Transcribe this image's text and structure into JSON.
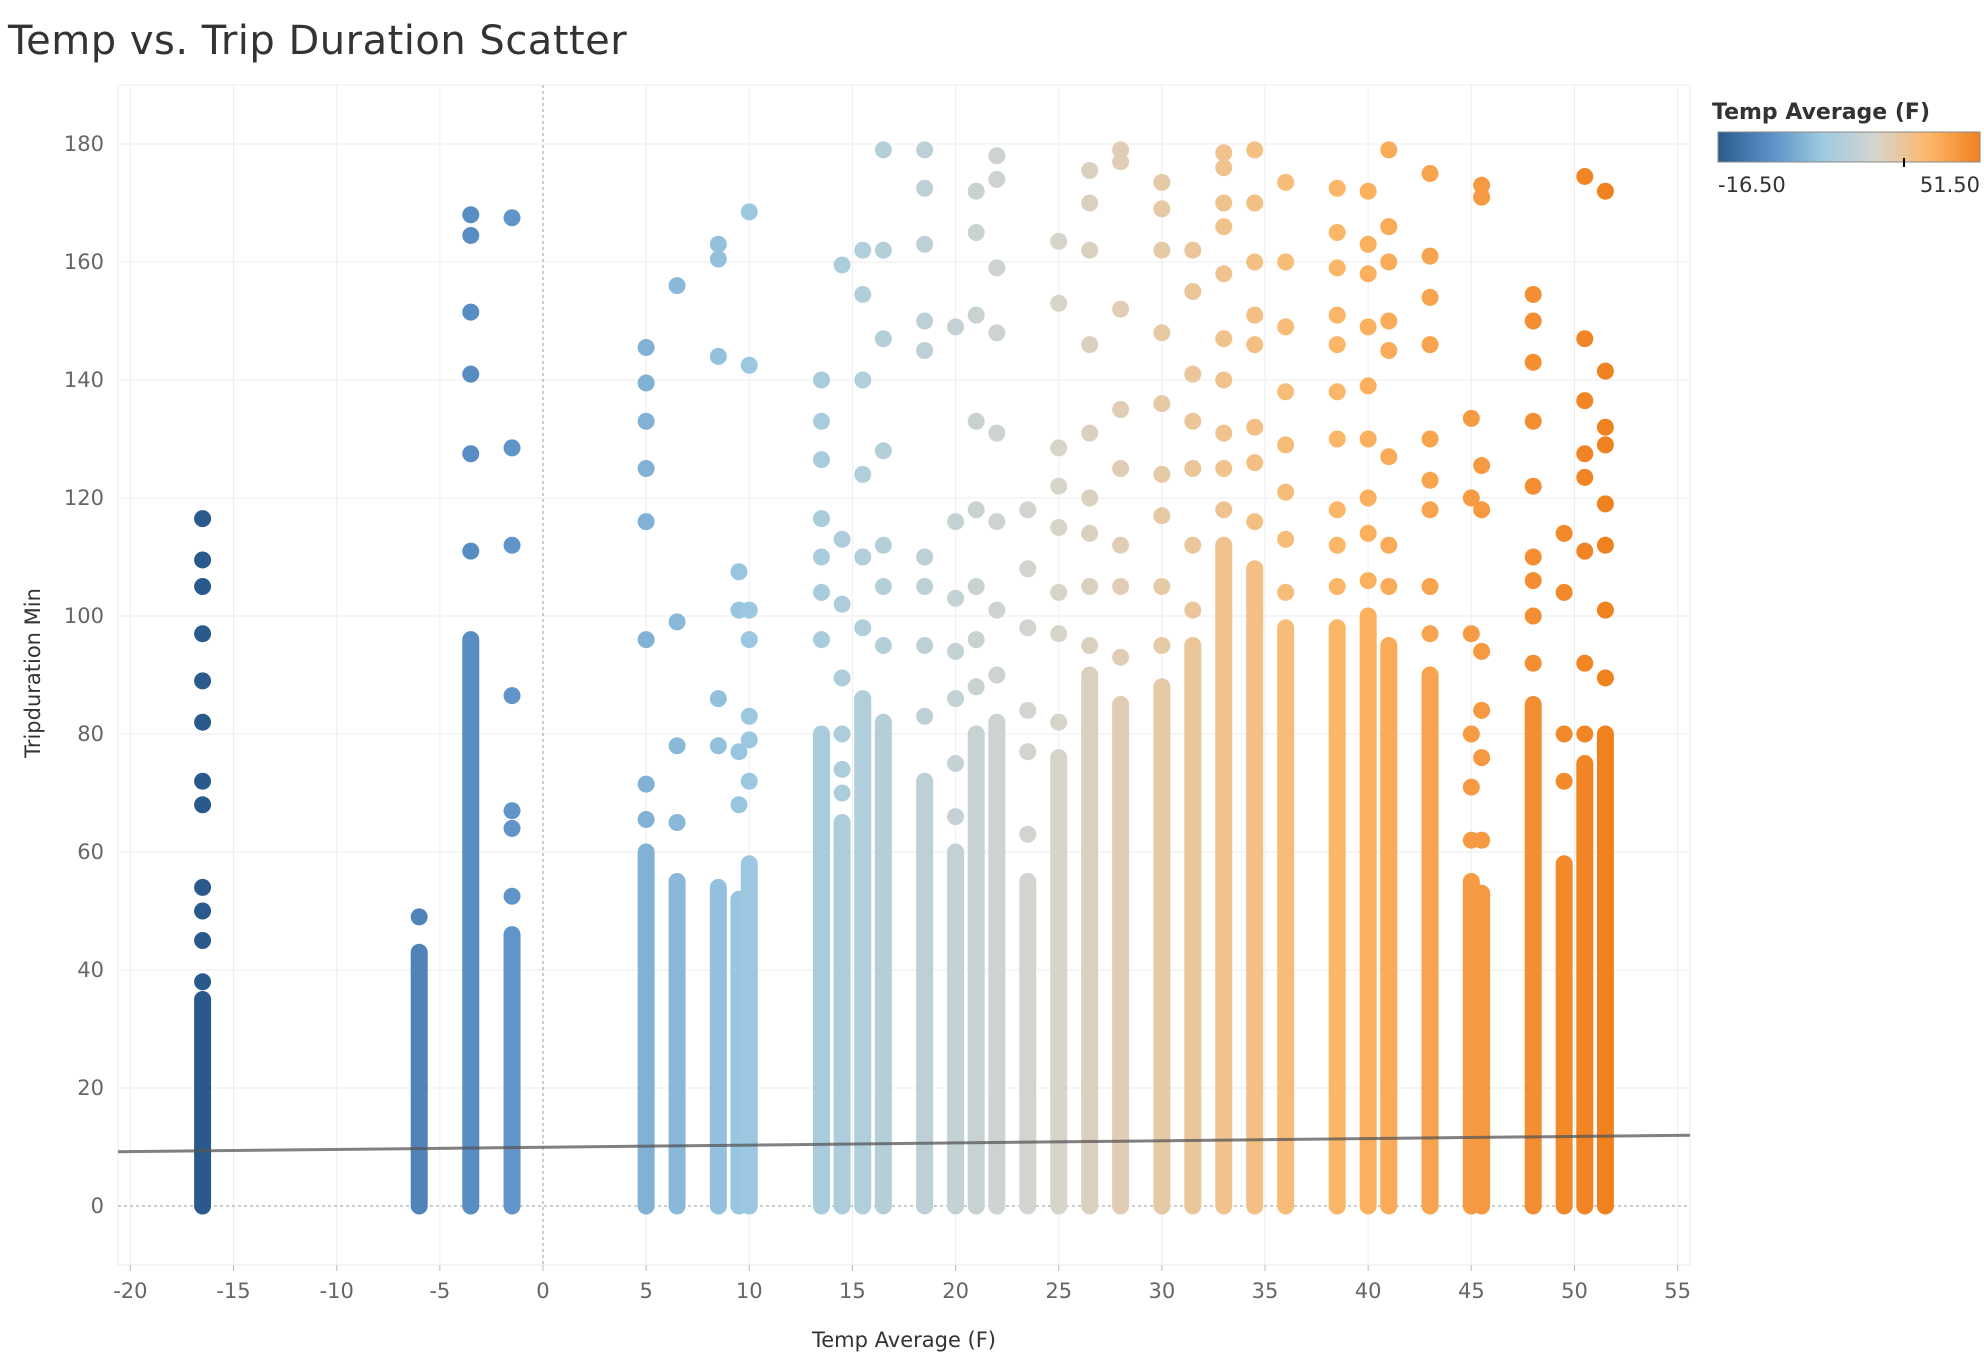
{
  "chart_data": {
    "type": "scatter",
    "title": "Temp vs. Trip Duration Scatter",
    "xlabel": "Temp Average (F)",
    "ylabel": "Tripduration Min",
    "xlim": [
      -20.6,
      55.6
    ],
    "ylim": [
      -10,
      190
    ],
    "x_ticks": [
      "-20",
      "-15",
      "-10",
      "-5",
      "0",
      "5",
      "10",
      "15",
      "20",
      "25",
      "30",
      "35",
      "40",
      "45",
      "50",
      "55"
    ],
    "y_ticks": [
      "0",
      "20",
      "40",
      "60",
      "80",
      "100",
      "120",
      "140",
      "160",
      "180"
    ],
    "grid": true,
    "color_legend": {
      "title": "Temp Average (F)",
      "min_label": "-16.50",
      "max_label": "51.50",
      "min": -16.5,
      "max": 51.5,
      "placement": "top-right",
      "stops": [
        "#2a5a8c",
        "#5a8fc6",
        "#9ecae1",
        "#d5d5cf",
        "#fdb86a",
        "#f0811f"
      ]
    },
    "trend_line": {
      "x": [
        -20.6,
        55.6
      ],
      "y": [
        9.2,
        12.0
      ],
      "color": "#555555"
    },
    "columns": [
      {
        "x": -16.5,
        "dense_top": 35,
        "outliers": [
          38,
          45,
          50,
          54,
          68,
          72,
          82,
          89,
          97,
          105,
          109.5,
          116.5
        ]
      },
      {
        "x": -6.0,
        "dense_top": 43,
        "outliers": [
          49
        ]
      },
      {
        "x": -3.5,
        "dense_top": 96,
        "outliers": [
          111,
          127.5,
          141,
          151.5,
          164.5,
          168
        ]
      },
      {
        "x": -1.5,
        "dense_top": 46,
        "outliers": [
          52.5,
          64,
          67,
          86.5,
          112,
          128.5,
          167.5
        ]
      },
      {
        "x": 5.0,
        "dense_top": 60,
        "outliers": [
          65.5,
          71.5,
          96,
          116,
          125,
          133,
          139.5,
          145.5
        ]
      },
      {
        "x": 6.5,
        "dense_top": 55,
        "outliers": [
          65,
          78,
          99,
          156
        ]
      },
      {
        "x": 8.5,
        "dense_top": 54,
        "outliers": [
          78,
          86,
          144,
          160.5,
          163
        ]
      },
      {
        "x": 9.5,
        "dense_top": 52,
        "outliers": [
          68,
          77,
          101,
          107.5
        ]
      },
      {
        "x": 10.0,
        "dense_top": 58,
        "outliers": [
          72,
          79,
          83,
          96,
          101,
          142.5,
          168.5
        ]
      },
      {
        "x": 13.5,
        "dense_top": 80,
        "outliers": [
          96,
          104,
          110,
          116.5,
          126.5,
          133,
          140
        ]
      },
      {
        "x": 14.5,
        "dense_top": 65,
        "outliers": [
          70,
          74,
          80,
          89.5,
          102,
          113,
          159.5
        ]
      },
      {
        "x": 15.5,
        "dense_top": 86,
        "outliers": [
          98,
          110,
          124,
          140,
          154.5,
          162
        ]
      },
      {
        "x": 16.5,
        "dense_top": 82,
        "outliers": [
          95,
          105,
          112,
          128,
          147,
          162,
          179
        ]
      },
      {
        "x": 18.5,
        "dense_top": 72,
        "outliers": [
          83,
          95,
          105,
          110,
          145,
          150,
          163,
          172.5,
          179
        ]
      },
      {
        "x": 20.0,
        "dense_top": 60,
        "outliers": [
          66,
          75,
          86,
          94,
          103,
          116,
          149
        ]
      },
      {
        "x": 21.0,
        "dense_top": 80,
        "outliers": [
          88,
          96,
          105,
          118,
          133,
          151,
          165,
          172
        ]
      },
      {
        "x": 22.0,
        "dense_top": 82,
        "outliers": [
          90,
          101,
          116,
          131,
          148,
          159,
          174,
          178
        ]
      },
      {
        "x": 23.5,
        "dense_top": 55,
        "outliers": [
          63,
          77,
          84,
          98,
          108,
          118
        ]
      },
      {
        "x": 25.0,
        "dense_top": 76,
        "outliers": [
          82,
          97,
          104,
          115,
          122,
          128.5,
          153,
          163.5
        ]
      },
      {
        "x": 26.5,
        "dense_top": 90,
        "outliers": [
          95,
          105,
          114,
          120,
          131,
          146,
          162,
          170,
          175.5
        ]
      },
      {
        "x": 28.0,
        "dense_top": 85,
        "outliers": [
          93,
          105,
          112,
          125,
          135,
          152,
          177,
          179
        ]
      },
      {
        "x": 30.0,
        "dense_top": 88,
        "outliers": [
          95,
          105,
          117,
          124,
          136,
          148,
          162,
          169,
          173.5
        ]
      },
      {
        "x": 31.5,
        "dense_top": 95,
        "outliers": [
          101,
          112,
          125,
          133,
          141,
          155,
          162
        ]
      },
      {
        "x": 33.0,
        "dense_top": 112,
        "outliers": [
          118,
          125,
          131,
          140,
          147,
          158,
          166,
          170,
          176,
          178.5
        ]
      },
      {
        "x": 34.5,
        "dense_top": 108,
        "outliers": [
          116,
          126,
          132,
          146,
          151,
          160,
          170,
          179
        ]
      },
      {
        "x": 36.0,
        "dense_top": 98,
        "outliers": [
          104,
          113,
          121,
          129,
          138,
          149,
          160,
          173.5
        ]
      },
      {
        "x": 38.5,
        "dense_top": 98,
        "outliers": [
          105,
          112,
          118,
          130,
          138,
          146,
          151,
          159,
          165,
          172.5
        ]
      },
      {
        "x": 40.0,
        "dense_top": 100,
        "outliers": [
          106,
          114,
          120,
          130,
          139,
          149,
          158,
          163,
          172
        ]
      },
      {
        "x": 41.0,
        "dense_top": 95,
        "outliers": [
          105,
          112,
          127,
          145,
          150,
          160,
          166,
          179
        ]
      },
      {
        "x": 43.0,
        "dense_top": 90,
        "outliers": [
          97,
          105,
          118,
          123,
          130,
          146,
          154,
          161,
          175
        ]
      },
      {
        "x": 45.0,
        "dense_top": 55,
        "outliers": [
          62,
          71,
          80,
          97,
          120,
          133.5
        ]
      },
      {
        "x": 45.5,
        "dense_top": 53,
        "outliers": [
          62,
          76,
          84,
          94,
          118,
          125.5,
          171,
          173
        ]
      },
      {
        "x": 48.0,
        "dense_top": 85,
        "outliers": [
          92,
          100,
          106,
          110,
          122,
          133,
          143,
          150,
          154.5
        ]
      },
      {
        "x": 49.5,
        "dense_top": 58,
        "outliers": [
          72,
          80,
          104,
          114
        ]
      },
      {
        "x": 50.5,
        "dense_top": 75,
        "outliers": [
          80,
          92,
          111,
          123.5,
          127.5,
          136.5,
          147,
          174.5
        ]
      },
      {
        "x": 51.5,
        "dense_top": 80,
        "outliers": [
          89.5,
          101,
          112,
          119,
          129,
          132,
          141.5,
          172
        ]
      }
    ]
  }
}
